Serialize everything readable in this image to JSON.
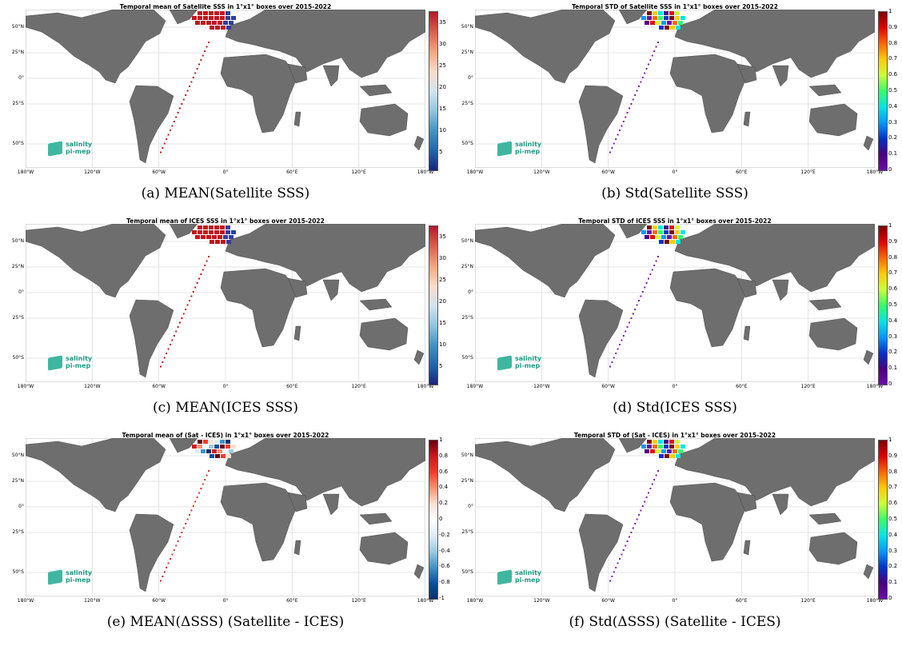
{
  "panels": [
    {
      "title": "Temporal mean of Satellite SSS in 1°x1° boxes over 2015-2022",
      "caption": "(a) MEAN(Satellite SSS)",
      "colorbar": {
        "type": "mean",
        "ticks": [
          "35",
          "30",
          "25",
          "20",
          "15",
          "10",
          "5"
        ],
        "colors": [
          "#b2182b",
          "#d6604d",
          "#f4a582",
          "#fddbc7",
          "#d1e5f0",
          "#92c5de",
          "#4393c3",
          "#2166ac",
          "#1a237e"
        ]
      },
      "data_color": "#c0141e"
    },
    {
      "title": "Temporal STD of Satellite SSS in 1°x1° boxes over 2015-2022",
      "caption": "(b) Std(Satellite SSS)",
      "colorbar": {
        "type": "std",
        "ticks": [
          "1",
          "0.9",
          "0.8",
          "0.7",
          "0.6",
          "0.5",
          "0.4",
          "0.3",
          "0.2",
          "0.1",
          "0"
        ],
        "colors": [
          "#800000",
          "#e60000",
          "#ff6600",
          "#ffcc00",
          "#ccff33",
          "#33ff66",
          "#00e6e6",
          "#0099ff",
          "#0033cc",
          "#4b0082",
          "#6a0dad"
        ]
      },
      "data_color": "#7b1fa2"
    },
    {
      "title": "Temporal mean of ICES SSS in 1°x1° boxes over 2015-2022",
      "caption": "(c) MEAN(ICES SSS)",
      "colorbar": {
        "type": "mean",
        "ticks": [
          "35",
          "30",
          "25",
          "20",
          "15",
          "10",
          "5"
        ],
        "colors": [
          "#b2182b",
          "#d6604d",
          "#f4a582",
          "#fddbc7",
          "#d1e5f0",
          "#92c5de",
          "#4393c3",
          "#2166ac",
          "#1a237e"
        ]
      },
      "data_color": "#c0141e"
    },
    {
      "title": "Temporal STD of ICES SSS in 1°x1° boxes over 2015-2022",
      "caption": "(d) Std(ICES SSS)",
      "colorbar": {
        "type": "std",
        "ticks": [
          "1",
          "0.9",
          "0.8",
          "0.7",
          "0.6",
          "0.5",
          "0.4",
          "0.3",
          "0.2",
          "0.1",
          "0"
        ],
        "colors": [
          "#800000",
          "#e60000",
          "#ff6600",
          "#ffcc00",
          "#ccff33",
          "#33ff66",
          "#00e6e6",
          "#0099ff",
          "#0033cc",
          "#4b0082",
          "#6a0dad"
        ]
      },
      "data_color": "#7b1fa2"
    },
    {
      "title": "Temporal mean of (Sat - ICES) in 1°x1° boxes over 2015-2022",
      "caption": "(e) MEAN(ΔSSS) (Satellite - ICES)",
      "colorbar": {
        "type": "diff",
        "ticks": [
          "1",
          "0.8",
          "0.6",
          "0.4",
          "0.2",
          "0",
          "-0.2",
          "-0.4",
          "-0.6",
          "-0.8",
          "-1"
        ],
        "colors": [
          "#67000d",
          "#cb181d",
          "#ef3b2c",
          "#fc9272",
          "#fee0d2",
          "#ffffff",
          "#deebf7",
          "#9ecae1",
          "#4292c6",
          "#08519c",
          "#08306b"
        ]
      },
      "data_color": "#d73027"
    },
    {
      "title": "Temporal STD of (Sat - ICES) in 1°x1° boxes over 2015-2022",
      "caption": "(f) Std(ΔSSS) (Satellite - ICES)",
      "colorbar": {
        "type": "std",
        "ticks": [
          "1",
          "0.9",
          "0.8",
          "0.7",
          "0.6",
          "0.5",
          "0.4",
          "0.3",
          "0.2",
          "0.1",
          "0"
        ],
        "colors": [
          "#800000",
          "#e60000",
          "#ff6600",
          "#ffcc00",
          "#ccff33",
          "#33ff66",
          "#00e6e6",
          "#0099ff",
          "#0033cc",
          "#4b0082",
          "#6a0dad"
        ]
      },
      "data_color": "#7b1fa2"
    }
  ],
  "lat_labels": [
    "50°N",
    "25°N",
    "0°",
    "25°S",
    "50°S"
  ],
  "lon_labels": [
    "180°W",
    "120°W",
    "60°W",
    "0°",
    "60°E",
    "120°E",
    "180°W"
  ],
  "logo": {
    "line1": "salinity",
    "line2": "pi-mep"
  },
  "land_color": "#6e6e6e"
}
